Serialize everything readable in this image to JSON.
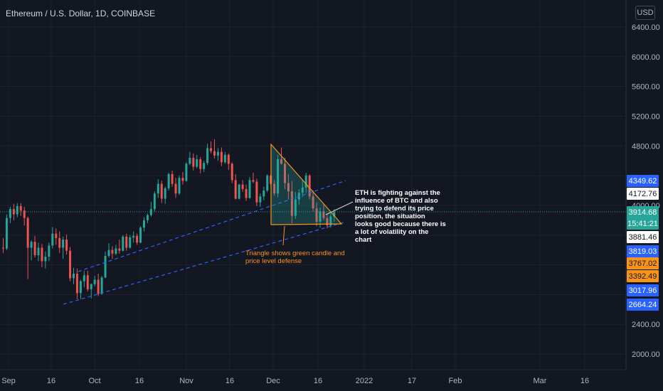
{
  "header": {
    "title": "Ethereum / U.S. Dollar, 1D, COINBASE",
    "currency_button": "USD"
  },
  "colors": {
    "up": "#26a69a",
    "down": "#ef5350",
    "background": "#131722",
    "grid": "#1e222d",
    "trend": "#2962ff",
    "triangle": "#f7931a",
    "blue_badge": "#2962ff",
    "orange_badge": "#f7931a",
    "white_badge": "#ffffff"
  },
  "chart_data": {
    "type": "candlestick",
    "y_axis": {
      "ticks": [
        "6400.00",
        "6000.00",
        "5600.00",
        "5200.00",
        "4800.00",
        "4000.00",
        "2400.00",
        "2000.00"
      ],
      "ylim": [
        1820,
        6700
      ],
      "grid": true
    },
    "x_axis": {
      "ticks": [
        "Sep",
        "16",
        "Oct",
        "16",
        "Nov",
        "16",
        "Dec",
        "16",
        "2022",
        "17",
        "Feb",
        "Mar",
        "16"
      ]
    },
    "candles": [
      [
        3430,
        3560,
        3360,
        3420
      ],
      [
        3420,
        3880,
        3400,
        3830
      ],
      [
        3830,
        3980,
        3760,
        3950
      ],
      [
        3950,
        4020,
        3800,
        3880
      ],
      [
        3880,
        4030,
        3840,
        3990
      ],
      [
        3990,
        4030,
        3860,
        3930
      ],
      [
        3930,
        3980,
        3730,
        3830
      ],
      [
        3830,
        3850,
        3010,
        3430
      ],
      [
        3430,
        3530,
        3260,
        3510
      ],
      [
        3510,
        3590,
        3300,
        3330
      ],
      [
        3330,
        3500,
        3250,
        3430
      ],
      [
        3430,
        3480,
        3170,
        3250
      ],
      [
        3250,
        3380,
        3150,
        3310
      ],
      [
        3310,
        3500,
        3250,
        3460
      ],
      [
        3460,
        3710,
        3420,
        3620
      ],
      [
        3620,
        3690,
        3470,
        3560
      ],
      [
        3560,
        3650,
        3360,
        3430
      ],
      [
        3430,
        3580,
        3280,
        3540
      ],
      [
        3540,
        3610,
        3340,
        3390
      ],
      [
        3390,
        3440,
        2980,
        3020
      ],
      [
        3020,
        3160,
        2940,
        3080
      ],
      [
        3080,
        3150,
        2740,
        2820
      ],
      [
        2820,
        3000,
        2740,
        2980
      ],
      [
        2980,
        3120,
        2900,
        3060
      ],
      [
        3060,
        3120,
        2840,
        2870
      ],
      [
        2870,
        2950,
        2750,
        2940
      ],
      [
        2940,
        3050,
        2910,
        3000
      ],
      [
        3000,
        3080,
        2780,
        2810
      ],
      [
        2810,
        3050,
        2800,
        3030
      ],
      [
        3030,
        3380,
        3020,
        3320
      ],
      [
        3320,
        3490,
        3300,
        3400
      ],
      [
        3400,
        3450,
        3280,
        3350
      ],
      [
        3350,
        3470,
        3330,
        3420
      ],
      [
        3420,
        3540,
        3350,
        3390
      ],
      [
        3390,
        3600,
        3380,
        3580
      ],
      [
        3580,
        3620,
        3390,
        3430
      ],
      [
        3430,
        3600,
        3420,
        3570
      ],
      [
        3570,
        3650,
        3500,
        3590
      ],
      [
        3590,
        3620,
        3470,
        3500
      ],
      [
        3500,
        3720,
        3490,
        3700
      ],
      [
        3700,
        3840,
        3650,
        3800
      ],
      [
        3800,
        3890,
        3760,
        3870
      ],
      [
        3870,
        4050,
        3850,
        3950
      ],
      [
        3950,
        4190,
        3920,
        4160
      ],
      [
        4160,
        4350,
        4100,
        4290
      ],
      [
        4290,
        4330,
        4030,
        4090
      ],
      [
        4090,
        4250,
        4020,
        4230
      ],
      [
        4230,
        4440,
        4200,
        4420
      ],
      [
        4420,
        4470,
        4250,
        4290
      ],
      [
        4290,
        4370,
        4100,
        4160
      ],
      [
        4160,
        4400,
        4140,
        4370
      ],
      [
        4370,
        4450,
        4280,
        4330
      ],
      [
        4330,
        4580,
        4320,
        4560
      ],
      [
        4560,
        4720,
        4540,
        4640
      ],
      [
        4640,
        4700,
        4470,
        4520
      ],
      [
        4520,
        4680,
        4500,
        4620
      ],
      [
        4620,
        4650,
        4430,
        4490
      ],
      [
        4490,
        4600,
        4450,
        4570
      ],
      [
        4570,
        4830,
        4540,
        4770
      ],
      [
        4770,
        4860,
        4700,
        4730
      ],
      [
        4730,
        4890,
        4630,
        4670
      ],
      [
        4670,
        4770,
        4600,
        4720
      ],
      [
        4720,
        4780,
        4530,
        4580
      ],
      [
        4580,
        4720,
        4560,
        4680
      ],
      [
        4680,
        4700,
        4480,
        4560
      ],
      [
        4560,
        4580,
        4300,
        4340
      ],
      [
        4340,
        4420,
        4080,
        4090
      ],
      [
        4090,
        4290,
        4080,
        4280
      ],
      [
        4280,
        4340,
        4180,
        4220
      ],
      [
        4220,
        4280,
        4060,
        4100
      ],
      [
        4100,
        4380,
        4090,
        4340
      ],
      [
        4340,
        4440,
        4300,
        4320
      ],
      [
        4320,
        4360,
        3990,
        4040
      ],
      [
        4040,
        4160,
        3980,
        4120
      ],
      [
        4120,
        4250,
        4070,
        4200
      ],
      [
        4200,
        4420,
        4180,
        4400
      ],
      [
        4400,
        4420,
        4260,
        4290
      ],
      [
        4290,
        4340,
        4130,
        4160
      ],
      [
        4160,
        4680,
        4110,
        4620
      ],
      [
        4620,
        4780,
        4550,
        4560
      ],
      [
        4560,
        4640,
        4220,
        4300
      ],
      [
        4300,
        4420,
        4080,
        4190
      ],
      [
        4190,
        4330,
        3760,
        3860
      ],
      [
        3860,
        4180,
        3820,
        4080
      ],
      [
        4080,
        4220,
        4010,
        4170
      ],
      [
        4170,
        4350,
        4110,
        4240
      ],
      [
        4240,
        4440,
        4170,
        4400
      ],
      [
        4400,
        4420,
        4080,
        4120
      ],
      [
        4120,
        4200,
        3920,
        3960
      ],
      [
        3960,
        4040,
        3720,
        3780
      ],
      [
        3780,
        3970,
        3700,
        3920
      ],
      [
        3920,
        4020,
        3800,
        3830
      ],
      [
        3830,
        3890,
        3690,
        3730
      ],
      [
        3730,
        3890,
        3700,
        3850
      ],
      [
        3850,
        3950,
        3780,
        3910
      ]
    ],
    "annotations": [
      "ETH is fighting against the influence of BTC and also trying to defend its price position, the situation looks good because there is a lot of volatility on the chart",
      "Triangle shows green candle and price level defense"
    ],
    "price_labels": [
      {
        "value": "4349.62",
        "style": "blue"
      },
      {
        "value": "4172.76",
        "style": "white"
      },
      {
        "value": "3914.68",
        "style": "green"
      },
      {
        "value": "15:41:21",
        "style": "green"
      },
      {
        "value": "3881.46",
        "style": "white"
      },
      {
        "value": "3819.03",
        "style": "blue"
      },
      {
        "value": "3767.02",
        "style": "orange"
      },
      {
        "value": "3392.49",
        "style": "orange"
      },
      {
        "value": "3017.96",
        "style": "blue"
      },
      {
        "value": "2664.24",
        "style": "blue"
      }
    ]
  }
}
